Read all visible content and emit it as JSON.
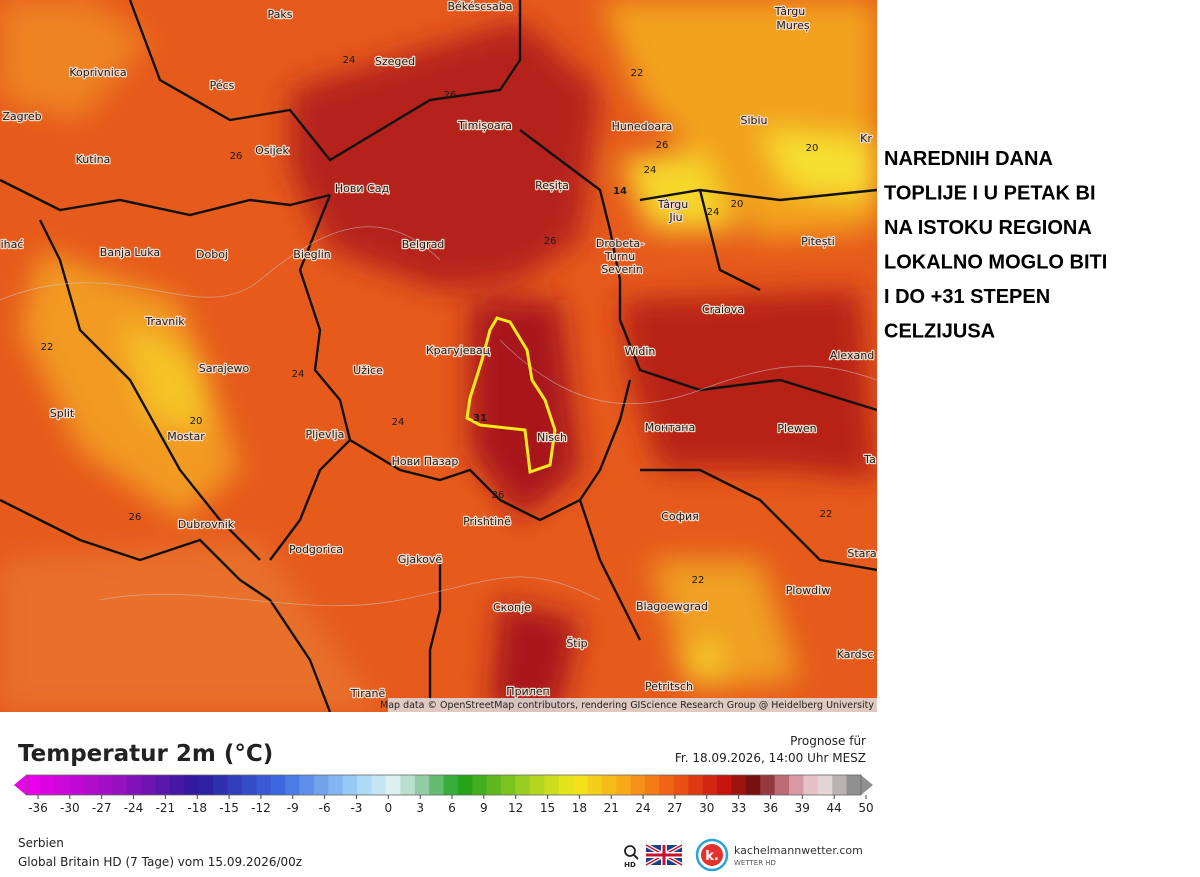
{
  "map": {
    "cities": [
      "Paks",
      "Békéscsaba",
      "Târgu",
      "Mureș",
      "Koprivnica",
      "Szeged",
      "Pécs",
      "Zagreb",
      "Timișoara",
      "Hunedoara",
      "Sibiu",
      "Kr",
      "Kutina",
      "Osijek",
      "Нови Сад",
      "Reșița",
      "Târgu",
      "Jiu",
      "ihać",
      "Banja Luka",
      "Doboj",
      "Bieglin",
      "Belgrad",
      "Drobeta-",
      "Turnu",
      "Severin",
      "Pitești",
      "Travnik",
      "Craiova",
      "Крагујевац",
      "Widin",
      "Alexand",
      "Sarajewo",
      "Užice",
      "Split",
      "Mostar",
      "Pljevlja",
      "Nisch",
      "Монтана",
      "Plewen",
      "Нови Пазар",
      "Ta",
      "Dubrovnik",
      "Prishtinë",
      "София",
      "Stara",
      "Podgorica",
      "Gjakovë",
      "Plowdiw",
      "Скопје",
      "Blagoewgrad",
      "Kardsc",
      "Štip",
      "Tiranë",
      "Petritsch",
      "Прилеп"
    ],
    "contour_labels": [
      24,
      22,
      26,
      26,
      26,
      24,
      20,
      14,
      24,
      20,
      26,
      22,
      24,
      20,
      24,
      31,
      26,
      26,
      22,
      22
    ],
    "attribution": "Map data © OpenStreetMap contributors, rendering GIScience Research Group @ Heidelberg University"
  },
  "caption": {
    "lines": [
      "NAREDNIH DANA",
      "TOPLIJE I U PETAK BI",
      "NA ISTOKU REGIONA",
      "LOKALNO MOGLO BITI",
      "I DO +31 STEPEN",
      "CELZIJUSA"
    ]
  },
  "legend": {
    "title": "Temperatur 2m (°C)",
    "forecast_label": "Prognose für",
    "forecast_time": "Fr. 18.09.2026, 14:00 Uhr MESZ",
    "ticks": [
      -36,
      -30,
      -27,
      -24,
      -21,
      -18,
      -15,
      -12,
      -9,
      -6,
      -3,
      0,
      3,
      6,
      9,
      12,
      15,
      18,
      21,
      24,
      27,
      30,
      33,
      36,
      39,
      44,
      50
    ],
    "region": "Serbien",
    "model": "Global Britain HD (7 Tage) vom  15.09.2026/00z",
    "hd": "HD",
    "logo_letter": "k.",
    "site": "kachelmannwetter.com",
    "brand": "WETTER HD"
  }
}
